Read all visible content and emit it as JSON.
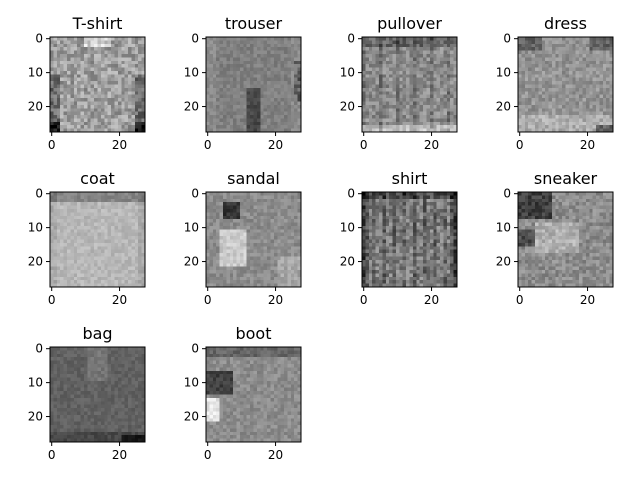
{
  "chart_data": {
    "type": "heatmap",
    "colormap": "gray",
    "image_shape": [
      28,
      28
    ],
    "x_ticks": [
      0,
      20
    ],
    "y_ticks": [
      0,
      10,
      20
    ],
    "panels": [
      {
        "title": "T-shirt"
      },
      {
        "title": "trouser"
      },
      {
        "title": "pullover"
      },
      {
        "title": "dress"
      },
      {
        "title": "coat"
      },
      {
        "title": "sandal"
      },
      {
        "title": "shirt"
      },
      {
        "title": "sneaker"
      },
      {
        "title": "bag"
      },
      {
        "title": "boot"
      }
    ]
  }
}
